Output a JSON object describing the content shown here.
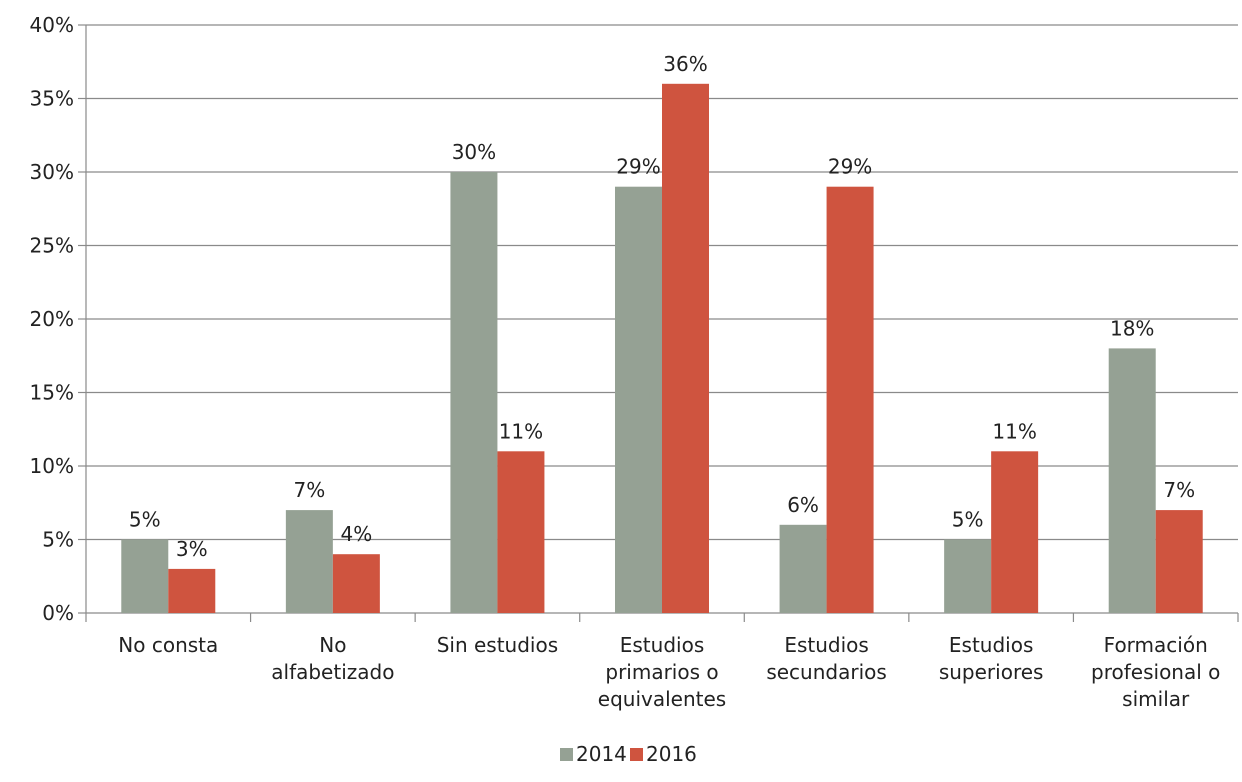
{
  "chart_data": {
    "type": "bar",
    "categories": [
      [
        "No consta"
      ],
      [
        "No",
        "alfabetizado"
      ],
      [
        "Sin estudios"
      ],
      [
        "Estudios",
        "primarios o",
        "equivalentes"
      ],
      [
        "Estudios",
        "secundarios"
      ],
      [
        "Estudios",
        "superiores"
      ],
      [
        "Formación",
        "profesional o",
        "similar"
      ]
    ],
    "series": [
      {
        "name": "2014",
        "color": "#95a194",
        "values": [
          5,
          7,
          30,
          29,
          6,
          5,
          18
        ],
        "labels": [
          "5%",
          "7%",
          "30%",
          "29%",
          "6%",
          "5%",
          "18%"
        ]
      },
      {
        "name": "2016",
        "color": "#cf543f",
        "values": [
          3,
          4,
          11,
          36,
          29,
          11,
          7
        ],
        "labels": [
          "3%",
          "4%",
          "11%",
          "36%",
          "29%",
          "11%",
          "7%"
        ]
      }
    ],
    "ylim": [
      0,
      40
    ],
    "yticks": [
      0,
      5,
      10,
      15,
      20,
      25,
      30,
      35,
      40
    ],
    "ytick_labels": [
      "0%",
      "5%",
      "10%",
      "15%",
      "20%",
      "25%",
      "30%",
      "35%",
      "40%"
    ],
    "grid": true,
    "legend_position": "bottom",
    "title": "",
    "xlabel": "",
    "ylabel": ""
  }
}
